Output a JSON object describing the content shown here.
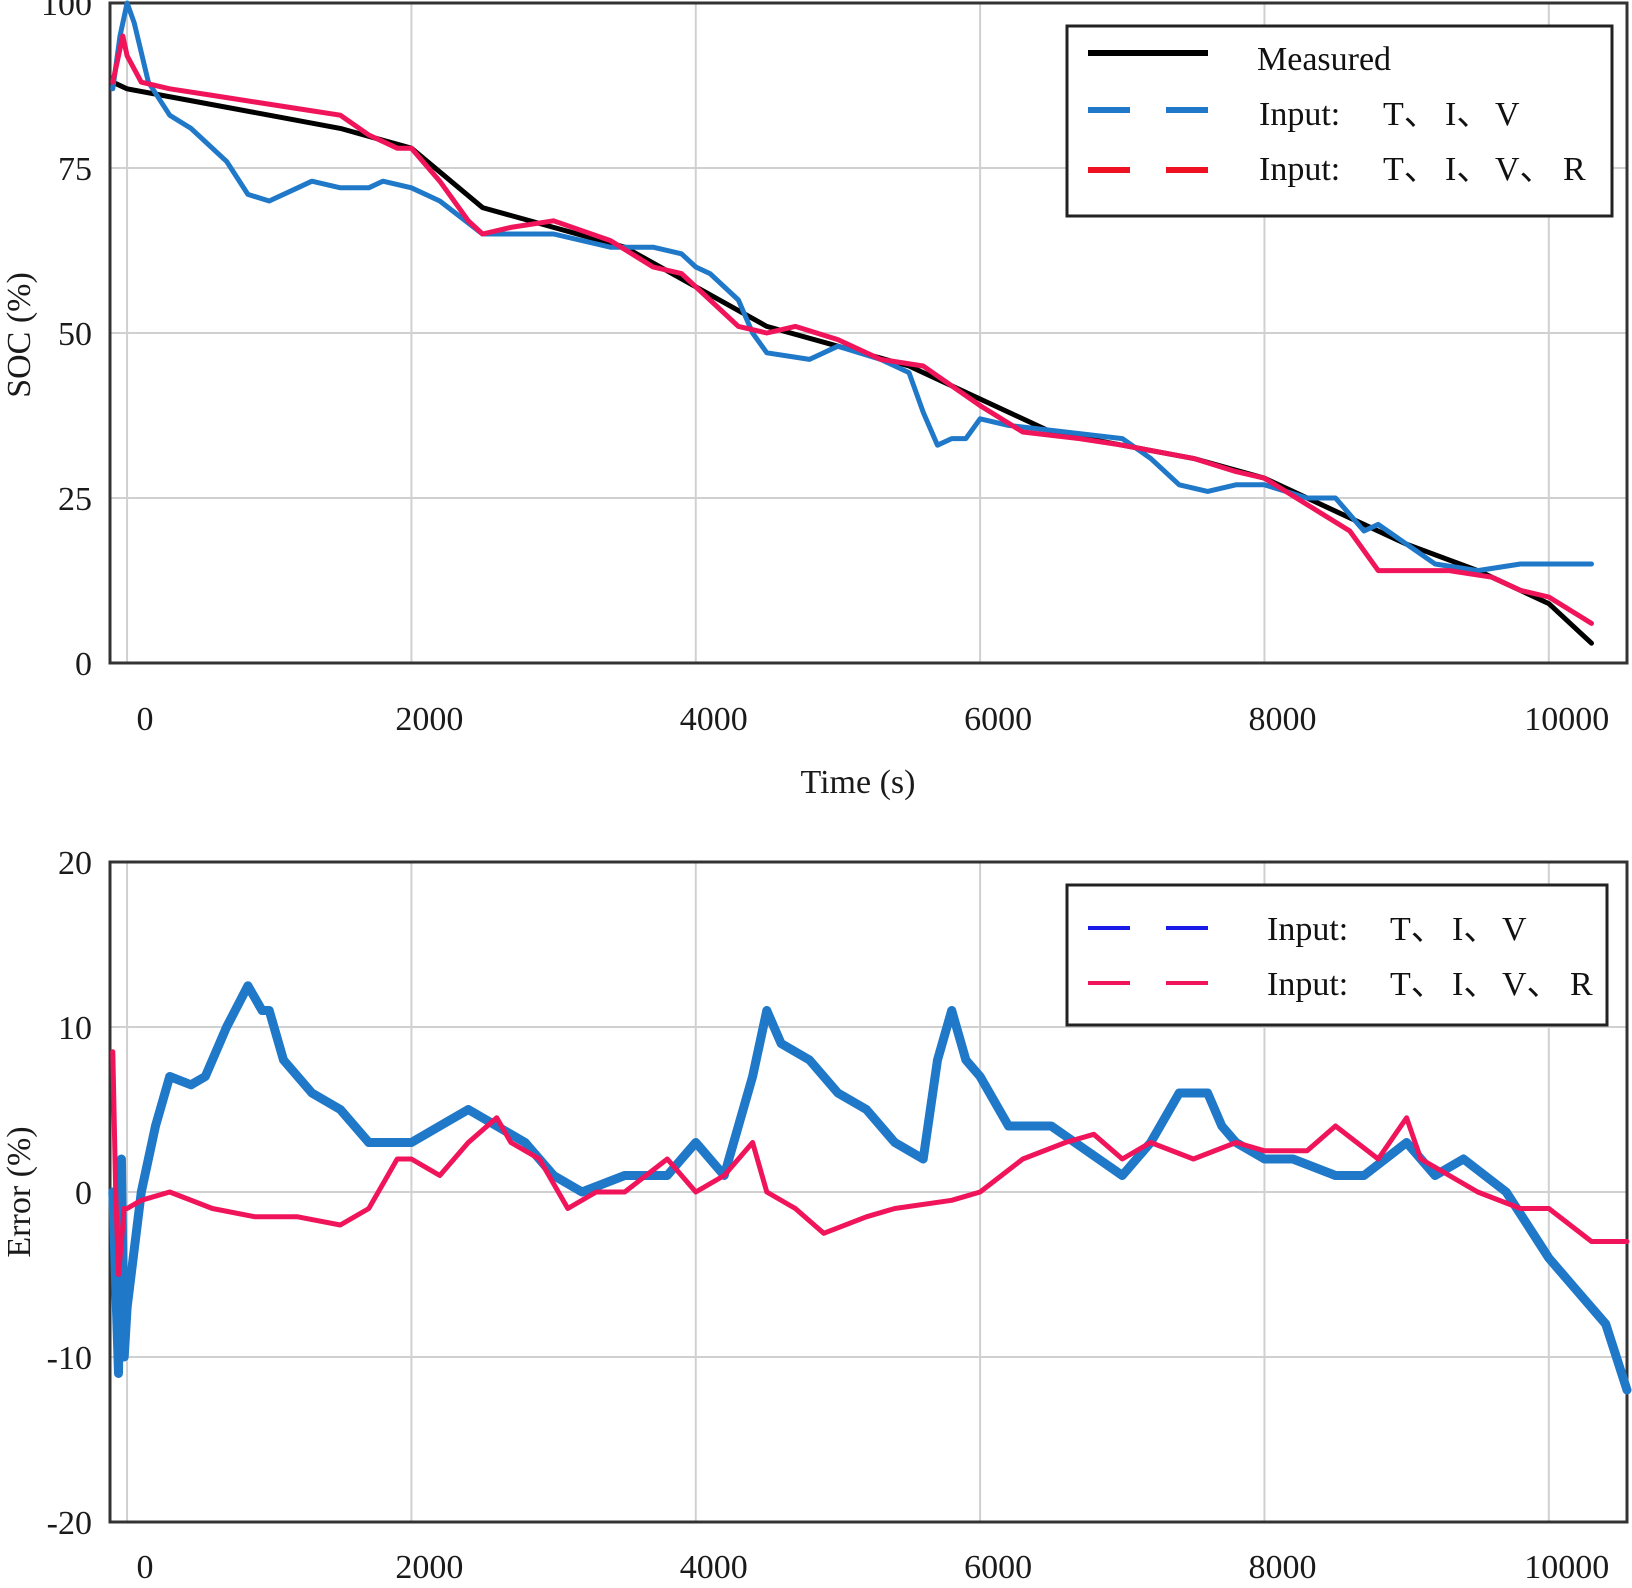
{
  "colors": {
    "measured": "#000000",
    "blue": "#1f78c8",
    "red": "#f0145a",
    "legend_blue_err": "#1a1ae6",
    "legend_red_dash": "#ee1122",
    "legend_red_err": "#f0145a"
  },
  "chart_data": [
    {
      "type": "line",
      "xlabel": "Time (s)",
      "ylabel": "SOC (%)",
      "xlim": [
        -120,
        10550
      ],
      "ylim": [
        0,
        100
      ],
      "xticks": [
        0,
        2000,
        4000,
        6000,
        8000,
        10000
      ],
      "yticks": [
        0,
        25,
        50,
        75,
        100
      ],
      "grid": true,
      "legend_position": "top-right",
      "series": [
        {
          "name": "Measured",
          "legend": [
            "Measured"
          ],
          "color_key": "measured",
          "x": [
            -100,
            0,
            500,
            1000,
            1500,
            2000,
            2500,
            3000,
            3500,
            4000,
            4500,
            5000,
            5500,
            6000,
            6500,
            7000,
            7500,
            8000,
            8500,
            9000,
            9500,
            10000,
            10300
          ],
          "y": [
            88,
            87,
            85,
            83,
            81,
            78,
            69,
            66,
            63,
            57,
            51,
            48,
            45,
            40,
            35,
            33,
            31,
            28,
            23,
            18,
            14,
            9,
            3
          ]
        },
        {
          "name": "Input: T、I、V",
          "legend": [
            "Input:",
            "T、",
            "I、",
            "V"
          ],
          "color_key": "blue",
          "x": [
            -100,
            -50,
            0,
            50,
            150,
            300,
            450,
            700,
            850,
            1000,
            1200,
            1300,
            1500,
            1700,
            1800,
            2000,
            2200,
            2500,
            2800,
            3000,
            3400,
            3700,
            3900,
            4000,
            4100,
            4300,
            4400,
            4500,
            4800,
            5000,
            5300,
            5500,
            5600,
            5700,
            5800,
            5900,
            6000,
            6200,
            6600,
            7000,
            7200,
            7400,
            7600,
            7800,
            8000,
            8300,
            8500,
            8700,
            8800,
            9000,
            9200,
            9500,
            9800,
            10000,
            10300
          ],
          "y": [
            87,
            95,
            100,
            97,
            88,
            83,
            81,
            76,
            71,
            70,
            72,
            73,
            72,
            72,
            73,
            72,
            70,
            65,
            65,
            65,
            63,
            63,
            62,
            60,
            59,
            55,
            50,
            47,
            46,
            48,
            46,
            44,
            38,
            33,
            34,
            34,
            37,
            36,
            35,
            34,
            31,
            27,
            26,
            27,
            27,
            25,
            25,
            20,
            21,
            18,
            15,
            14,
            15,
            15,
            15
          ]
        },
        {
          "name": "Input: T、I、V、R",
          "legend": [
            "Input:",
            "T、",
            "I、",
            "V、",
            "R"
          ],
          "color_key": "red",
          "x": [
            -100,
            -30,
            0,
            100,
            300,
            600,
            900,
            1200,
            1500,
            1700,
            1900,
            2000,
            2200,
            2400,
            2500,
            2700,
            3000,
            3400,
            3700,
            3900,
            4100,
            4300,
            4500,
            4700,
            5000,
            5300,
            5600,
            6000,
            6300,
            6700,
            7000,
            7500,
            7800,
            8000,
            8300,
            8600,
            8800,
            9000,
            9300,
            9600,
            9800,
            10000,
            10300
          ],
          "y": [
            88,
            95,
            92,
            88,
            87,
            86,
            85,
            84,
            83,
            80,
            78,
            78,
            73,
            67,
            65,
            66,
            67,
            64,
            60,
            59,
            55,
            51,
            50,
            51,
            49,
            46,
            45,
            39,
            35,
            34,
            33,
            31,
            29,
            28,
            24,
            20,
            14,
            14,
            14,
            13,
            11,
            10,
            6
          ]
        }
      ]
    },
    {
      "type": "line",
      "xlabel": "",
      "ylabel": "Error (%)",
      "xlim": [
        -120,
        10550
      ],
      "ylim": [
        -20,
        20
      ],
      "xticks": [
        0,
        2000,
        4000,
        6000,
        8000,
        10000
      ],
      "yticks": [
        -20,
        -10,
        0,
        10,
        20
      ],
      "grid": true,
      "legend_position": "top-right",
      "series": [
        {
          "name": "Input: T、I、V",
          "legend": [
            "Input:",
            "T、",
            "I、",
            "V"
          ],
          "color_key": "blue",
          "legend_color_key": "legend_blue_err",
          "x": [
            -100,
            -60,
            -40,
            -20,
            0,
            100,
            200,
            300,
            450,
            550,
            700,
            850,
            950,
            1000,
            1100,
            1200,
            1300,
            1500,
            1700,
            2000,
            2200,
            2400,
            2600,
            2800,
            3000,
            3200,
            3500,
            3800,
            3900,
            4000,
            4200,
            4400,
            4500,
            4600,
            4800,
            5000,
            5200,
            5400,
            5600,
            5700,
            5800,
            5900,
            6000,
            6200,
            6500,
            7000,
            7200,
            7400,
            7600,
            7700,
            7800,
            8000,
            8200,
            8500,
            8700,
            9000,
            9200,
            9400,
            9700,
            10000,
            10200,
            10400,
            10550
          ],
          "y": [
            0,
            -11,
            2,
            -10,
            -7,
            0,
            4,
            7,
            6.5,
            7,
            10,
            12.5,
            11,
            11,
            8,
            7,
            6,
            5,
            3,
            3,
            4,
            5,
            4,
            3,
            1,
            0,
            1,
            1,
            2,
            3,
            1,
            7,
            11,
            9,
            8,
            6,
            5,
            3,
            2,
            8,
            11,
            8,
            7,
            4,
            4,
            1,
            3,
            6,
            6,
            4,
            3,
            2,
            2,
            1,
            1,
            3,
            1,
            2,
            0,
            -4,
            -6,
            -8,
            -12
          ]
        },
        {
          "name": "Input: T、I、V、R",
          "legend": [
            "Input:",
            "T、",
            "I、",
            "V、",
            "R"
          ],
          "color_key": "red",
          "legend_color_key": "legend_red_err",
          "x": [
            -100,
            -80,
            -60,
            -40,
            -20,
            0,
            100,
            300,
            600,
            900,
            1200,
            1500,
            1700,
            1900,
            2000,
            2200,
            2400,
            2600,
            2700,
            2900,
            3100,
            3300,
            3500,
            3800,
            4000,
            4200,
            4400,
            4500,
            4700,
            4900,
            5200,
            5400,
            5800,
            6000,
            6300,
            6600,
            6800,
            7000,
            7200,
            7500,
            7800,
            8000,
            8300,
            8500,
            8800,
            9000,
            9100,
            9300,
            9500,
            9800,
            10000,
            10300,
            10550
          ],
          "y": [
            8.5,
            0,
            -5,
            -3,
            -1,
            -1,
            -0.5,
            0,
            -1,
            -1.5,
            -1.5,
            -2,
            -1,
            2,
            2,
            1,
            3,
            4.5,
            3,
            2,
            -1,
            0,
            0,
            2,
            0,
            1,
            3,
            0,
            -1,
            -2.5,
            -1.5,
            -1,
            -0.5,
            0,
            2,
            3,
            3.5,
            2,
            3,
            2,
            3,
            2.5,
            2.5,
            4,
            2,
            4.5,
            2,
            1,
            0,
            -1,
            -1,
            -3,
            -3
          ]
        }
      ]
    }
  ]
}
